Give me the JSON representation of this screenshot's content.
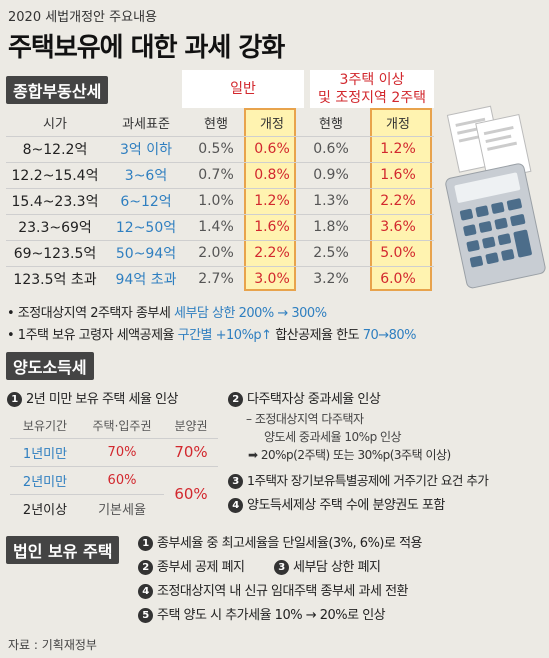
{
  "header": {
    "supertitle": "2020 세법개정안 주요내용",
    "title": "주택보유에 대한 과세 강화"
  },
  "section1": {
    "label": "종합부동산세",
    "group_general": "일반",
    "group_multi_line1": "3주택 이상",
    "group_multi_line2": "및 조정지역 2주택",
    "columns": [
      "시가",
      "과세표준",
      "현행",
      "개정",
      "현행",
      "개정"
    ],
    "rows": [
      {
        "price": "8~12.2억",
        "base": "3억 이하",
        "g_cur": "0.5%",
        "g_new": "0.6%",
        "m_cur": "0.6%",
        "m_new": "1.2%"
      },
      {
        "price": "12.2~15.4억",
        "base": "3~6억",
        "g_cur": "0.7%",
        "g_new": "0.8%",
        "m_cur": "0.9%",
        "m_new": "1.6%"
      },
      {
        "price": "15.4~23.3억",
        "base": "6~12억",
        "g_cur": "1.0%",
        "g_new": "1.2%",
        "m_cur": "1.3%",
        "m_new": "2.2%"
      },
      {
        "price": "23.3~69억",
        "base": "12~50억",
        "g_cur": "1.4%",
        "g_new": "1.6%",
        "m_cur": "1.8%",
        "m_new": "3.6%"
      },
      {
        "price": "69~123.5억",
        "base": "50~94억",
        "g_cur": "2.0%",
        "g_new": "2.2%",
        "m_cur": "2.5%",
        "m_new": "5.0%"
      },
      {
        "price": "123.5억 초과",
        "base": "94억 초과",
        "g_cur": "2.7%",
        "g_new": "3.0%",
        "m_cur": "3.2%",
        "m_new": "6.0%"
      }
    ],
    "note1_a": "• 조정대상지역 2주택자 종부세 ",
    "note1_b": "세부담 상한 200% → 300%",
    "note2_a": "• 1주택 보유 고령자 세액공제율 ",
    "note2_b": "구간별 +10%p↑",
    "note2_c": " 합산공제율 한도 ",
    "note2_d": "70→80%"
  },
  "section2": {
    "label": "양도소득세",
    "item1_num": "1",
    "item1": "2년 미만 보유 주택 세율 인상",
    "item2_num": "2",
    "item2": "다주택자상 중과세율 인상",
    "item2_sub1": "– 조정대상지역 다주택자",
    "item2_sub2": "양도세 중과세율 10%p 인상",
    "item2_sub3": "➡ 20%p(2주택) 또는 30%p(3주택 이상)",
    "item3_num": "3",
    "item3": "1주택자 장기보유특별공제에 거주기간 요건 추가",
    "item4_num": "4",
    "item4": "양도득세제상 주택 수에 분양권도 포함",
    "table_headers": [
      "보유기간",
      "주택·입주권",
      "분양권"
    ],
    "table_rows": [
      {
        "period": "1년미만",
        "house": "70%",
        "presale": "70%"
      },
      {
        "period": "2년미만",
        "house": "60%",
        "presale": "60%"
      },
      {
        "period": "2년이상",
        "house": "기본세율",
        "presale": ""
      }
    ]
  },
  "section3": {
    "label": "법인 보유 주택",
    "items": [
      {
        "num": "1",
        "text": "종부세율 중 최고세율을 단일세율(3%, 6%)로 적용"
      },
      {
        "num": "2",
        "text": "종부세 공제 폐지"
      },
      {
        "num": "3",
        "text": "세부담 상한 폐지"
      },
      {
        "num": "4",
        "text": "조정대상지역 내 신규 임대주택 종부세 과세 전환"
      },
      {
        "num": "5",
        "text": "주택 양도 시 추가세율 10% → 20%로 인상"
      }
    ]
  },
  "footer": {
    "source": "자료 : 기획재정부"
  }
}
